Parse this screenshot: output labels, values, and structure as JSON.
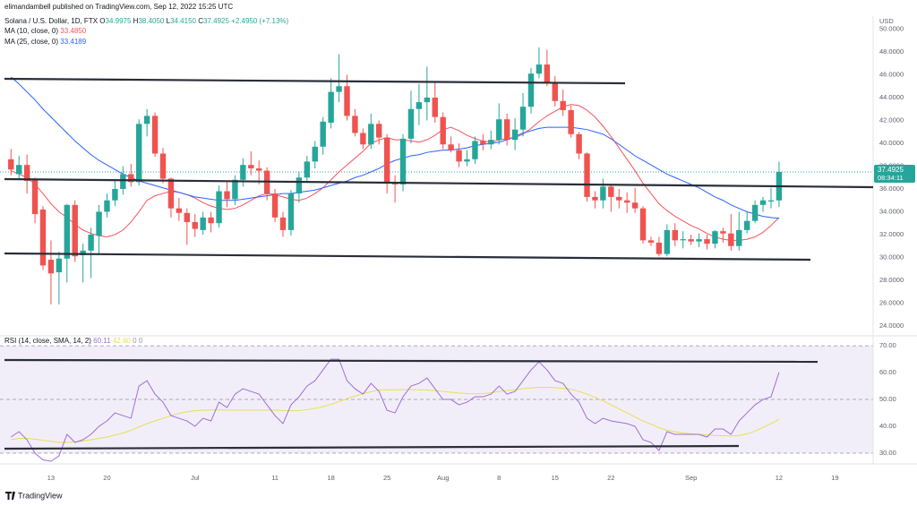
{
  "header": {
    "publisher": "elimandambell published on TradingView.com, Sep 12, 2022 15:25 UTC",
    "brand": "TradingView"
  },
  "chart_data": [
    {
      "type": "candlestick",
      "title": "Solana / U.S. Dollar, 1D, FTX",
      "ohlc_legend": [
        {
          "key": "O",
          "value": "34.9975"
        },
        {
          "key": "H",
          "value": "38.4050"
        },
        {
          "key": "L",
          "value": "34.4150"
        },
        {
          "key": "C",
          "value": "37.4925"
        }
      ],
      "change": "+2.4950 (+7.13%)",
      "currency": "USD",
      "price_label": "37.4925",
      "countdown": "08:34:11",
      "up_color": "#26a69a",
      "down_color": "#ef5350",
      "grid": false,
      "categories": [
        null,
        null,
        null,
        null,
        null,
        "13",
        null,
        null,
        null,
        null,
        null,
        null,
        "20",
        null,
        null,
        null,
        null,
        null,
        null,
        null,
        null,
        null,
        null,
        "Jul",
        null,
        null,
        null,
        null,
        null,
        null,
        null,
        null,
        null,
        "11",
        null,
        null,
        null,
        null,
        null,
        null,
        "18",
        null,
        null,
        null,
        null,
        null,
        null,
        "25",
        null,
        null,
        null,
        null,
        null,
        null,
        "Aug",
        null,
        null,
        null,
        null,
        null,
        null,
        "8",
        null,
        null,
        null,
        null,
        null,
        null,
        "15",
        null,
        null,
        null,
        null,
        null,
        null,
        "22",
        null,
        null,
        null,
        null,
        null,
        null,
        null,
        null,
        null,
        "Sep",
        null,
        null,
        null,
        null,
        null,
        null,
        null,
        null,
        null,
        null,
        "12",
        null,
        null,
        null,
        null,
        null,
        null,
        "19",
        null,
        null,
        null,
        null
      ],
      "open": [
        38.6,
        37.3,
        38.1,
        36.8,
        34.2,
        29.8,
        28.7,
        29.9,
        34.6,
        30.2,
        30.6,
        31.9,
        34.0,
        35.0,
        36.0,
        37.3,
        36.6,
        41.7,
        42.4,
        39.1,
        36.9,
        34.3,
        33.9,
        33.1,
        32.4,
        33.5,
        33.0,
        35.8,
        35.1,
        36.8,
        38.1,
        37.8,
        37.6,
        35.6,
        33.5,
        32.4,
        35.6,
        37.0,
        38.4,
        39.7,
        41.8,
        44.5,
        45.0,
        42.4,
        40.9,
        39.9,
        41.7,
        40.5,
        36.6,
        36.4,
        40.4,
        43.0,
        43.6,
        44.0,
        42.3,
        39.9,
        39.4,
        38.4,
        38.6,
        40.2,
        39.9,
        40.3,
        42.1,
        40.3,
        41.2,
        43.2,
        46.1,
        46.9,
        45.3,
        43.7,
        42.9,
        40.8,
        39.1,
        35.3,
        35.0,
        36.2,
        35.3,
        35.0,
        34.8,
        34.3,
        31.5,
        31.3,
        30.3,
        32.4,
        31.5,
        31.6,
        31.4,
        31.6,
        31.2,
        32.3,
        32.1,
        31.0,
        32.4,
        33.2,
        34.6,
        34.9,
        34.9975,
        null,
        null,
        null,
        null,
        null,
        null,
        null,
        null,
        null,
        null,
        null
      ],
      "high": [
        39.5,
        38.9,
        39.0,
        37.0,
        34.5,
        31.5,
        30.5,
        34.7,
        35.0,
        31.2,
        32.6,
        34.6,
        35.6,
        36.8,
        38.0,
        38.2,
        42.1,
        43.0,
        42.7,
        39.6,
        37.0,
        35.2,
        34.3,
        33.8,
        34.0,
        34.0,
        36.3,
        36.6,
        37.2,
        38.7,
        39.3,
        38.5,
        37.9,
        36.0,
        34.0,
        35.9,
        37.5,
        38.9,
        40.2,
        42.3,
        45.7,
        47.8,
        46.0,
        43.0,
        41.3,
        42.6,
        42.0,
        40.8,
        37.2,
        40.8,
        44.6,
        45.2,
        46.7,
        45.3,
        42.7,
        40.6,
        40.0,
        39.4,
        40.6,
        40.8,
        41.1,
        43.5,
        42.6,
        42.2,
        44.4,
        46.6,
        48.4,
        48.2,
        45.9,
        44.7,
        43.3,
        41.0,
        39.2,
        35.8,
        36.9,
        36.4,
        36.0,
        35.7,
        36.1,
        34.5,
        31.8,
        31.8,
        32.9,
        33.0,
        32.3,
        32.0,
        32.1,
        32.0,
        32.4,
        32.6,
        33.8,
        34.0,
        34.0,
        35.0,
        35.3,
        36.1,
        38.405,
        null,
        null,
        null,
        null,
        null,
        null,
        null,
        null,
        null,
        null,
        null
      ],
      "low": [
        37.2,
        36.9,
        35.6,
        33.0,
        28.9,
        25.9,
        25.9,
        27.8,
        29.6,
        27.8,
        28.2,
        30.3,
        33.5,
        34.5,
        35.5,
        36.2,
        36.3,
        40.6,
        38.8,
        36.5,
        33.5,
        33.2,
        31.1,
        31.8,
        32.0,
        32.2,
        32.6,
        34.4,
        34.6,
        36.2,
        37.2,
        36.4,
        35.0,
        33.1,
        31.8,
        31.9,
        34.8,
        36.6,
        37.8,
        39.0,
        41.3,
        43.6,
        42.0,
        40.6,
        39.5,
        39.5,
        39.9,
        35.6,
        34.8,
        35.8,
        40.0,
        41.6,
        42.0,
        41.8,
        39.5,
        39.2,
        37.9,
        38.0,
        38.2,
        39.4,
        39.5,
        39.9,
        39.8,
        39.4,
        40.6,
        42.6,
        45.7,
        45.0,
        43.2,
        42.4,
        40.5,
        38.6,
        34.9,
        34.3,
        34.3,
        34.0,
        34.3,
        33.9,
        33.9,
        31.2,
        31.0,
        30.1,
        30.1,
        31.0,
        30.8,
        31.1,
        30.9,
        30.7,
        30.8,
        31.3,
        30.6,
        30.6,
        32.1,
        33.0,
        34.0,
        34.3,
        34.415,
        null,
        null,
        null,
        null,
        null,
        null,
        null,
        null,
        null,
        null,
        null
      ],
      "close": [
        37.7,
        38.1,
        36.7,
        33.8,
        29.3,
        28.6,
        29.9,
        34.6,
        30.1,
        30.6,
        32.0,
        34.0,
        35.0,
        36.0,
        37.3,
        36.6,
        41.7,
        42.4,
        39.1,
        36.9,
        34.3,
        33.9,
        33.1,
        32.5,
        33.5,
        33.0,
        35.8,
        35.1,
        36.8,
        38.1,
        37.8,
        37.6,
        35.6,
        33.5,
        32.4,
        35.6,
        37.0,
        38.4,
        39.7,
        41.9,
        44.5,
        45.0,
        42.4,
        40.9,
        39.9,
        41.7,
        40.5,
        36.6,
        36.4,
        40.4,
        43.0,
        43.6,
        44.0,
        42.3,
        39.9,
        39.4,
        38.4,
        38.6,
        40.2,
        39.9,
        40.3,
        42.1,
        40.3,
        41.2,
        43.2,
        46.1,
        46.9,
        45.3,
        43.7,
        42.9,
        40.8,
        39.1,
        35.3,
        35.0,
        36.2,
        35.3,
        35.0,
        34.8,
        34.3,
        31.5,
        31.3,
        30.3,
        32.4,
        31.5,
        31.6,
        31.4,
        31.6,
        31.2,
        32.3,
        32.1,
        31.0,
        32.4,
        33.2,
        34.6,
        35.0,
        35.0,
        37.4925,
        null,
        null,
        null,
        null,
        null,
        null,
        null,
        null,
        null,
        null,
        null
      ],
      "series": [
        {
          "name": "MA (10, close, 0)",
          "legend_value": "33.4850",
          "color": "#f7525f",
          "values": [
            37.6,
            37.3,
            37.0,
            36.4,
            35.6,
            34.7,
            34.0,
            33.5,
            32.9,
            32.4,
            32.1,
            31.9,
            31.8,
            32.0,
            32.4,
            33.1,
            34.0,
            35.0,
            35.4,
            35.6,
            35.8,
            35.7,
            35.5,
            35.2,
            34.8,
            34.5,
            34.3,
            34.2,
            34.3,
            34.6,
            35.0,
            35.4,
            35.6,
            35.5,
            35.3,
            35.1,
            35.0,
            35.2,
            35.6,
            36.1,
            36.8,
            37.5,
            38.1,
            38.7,
            39.3,
            40.0,
            40.3,
            40.5,
            40.3,
            40.3,
            40.2,
            40.1,
            40.3,
            40.7,
            41.2,
            41.4,
            41.1,
            40.7,
            40.4,
            40.2,
            40.1,
            40.3,
            40.4,
            40.5,
            40.8,
            41.3,
            41.9,
            42.4,
            42.8,
            43.2,
            43.4,
            43.3,
            42.9,
            42.3,
            41.5,
            40.6,
            39.6,
            38.6,
            37.6,
            36.5,
            35.6,
            34.7,
            34.1,
            33.6,
            33.2,
            32.8,
            32.5,
            32.1,
            31.8,
            31.6,
            31.5,
            31.5,
            31.6,
            31.8,
            32.2,
            32.8,
            33.485,
            null,
            null,
            null,
            null,
            null,
            null,
            null,
            null,
            null,
            null,
            null
          ]
        },
        {
          "name": "MA (25, close, 0)",
          "legend_value": "33.4189",
          "color": "#2962ff",
          "values": [
            45.8,
            45.2,
            44.5,
            43.8,
            43.0,
            42.3,
            41.6,
            40.9,
            40.2,
            39.6,
            39.0,
            38.5,
            38.1,
            37.7,
            37.3,
            37.0,
            36.7,
            36.5,
            36.3,
            36.1,
            35.9,
            35.7,
            35.5,
            35.3,
            35.2,
            35.1,
            35.0,
            35.0,
            35.0,
            35.1,
            35.2,
            35.3,
            35.4,
            35.5,
            35.6,
            35.6,
            35.7,
            35.8,
            35.9,
            36.1,
            36.3,
            36.5,
            36.7,
            37.0,
            37.2,
            37.5,
            37.8,
            38.2,
            38.5,
            38.7,
            38.9,
            39.0,
            39.2,
            39.3,
            39.4,
            39.4,
            39.5,
            39.6,
            39.8,
            39.9,
            40.0,
            40.1,
            40.3,
            40.6,
            40.9,
            41.1,
            41.3,
            41.4,
            41.4,
            41.4,
            41.4,
            41.3,
            41.2,
            41.0,
            40.8,
            40.4,
            39.9,
            39.4,
            38.9,
            38.5,
            38.1,
            37.7,
            37.3,
            37.0,
            36.7,
            36.4,
            36.1,
            35.7,
            35.3,
            35.0,
            34.6,
            34.3,
            34.0,
            33.8,
            33.6,
            33.5,
            33.4189,
            null,
            null,
            null,
            null,
            null,
            null,
            null,
            null,
            null,
            null,
            null
          ]
        }
      ],
      "ylim": [
        23.37,
        50.98
      ],
      "yticks": [
        {
          "value": 24,
          "label": "24.0000"
        },
        {
          "value": 26,
          "label": "26.0000"
        },
        {
          "value": 28,
          "label": "28.0000"
        },
        {
          "value": 30,
          "label": "30.0000"
        },
        {
          "value": 32,
          "label": "32.0000"
        },
        {
          "value": 34,
          "label": "34.0000"
        },
        {
          "value": 36,
          "label": "36.0000"
        },
        {
          "value": 38,
          "label": "38.0000"
        },
        {
          "value": 40,
          "label": "40.0000"
        },
        {
          "value": 42,
          "label": "42.0000"
        },
        {
          "value": 44,
          "label": "44.0000"
        },
        {
          "value": 46,
          "label": "46.0000"
        },
        {
          "value": 48,
          "label": "48.0000"
        },
        {
          "value": 50,
          "label": "50.0000"
        }
      ]
    },
    {
      "type": "line",
      "title": "RSI (14, close, SMA, 14, 2)",
      "extra_legend": [
        "0",
        "0"
      ],
      "band": [
        30,
        70
      ],
      "band_color": "#7e57c2",
      "midline": 50,
      "series": [
        {
          "name": "RSI",
          "legend_value": "60.11",
          "color": "#9c6fd6",
          "values": [
            36,
            38,
            35,
            30,
            27.5,
            27,
            29,
            37,
            34,
            35,
            37,
            40,
            42,
            45,
            44,
            43,
            55,
            57,
            52,
            49,
            44,
            43,
            42,
            40,
            43,
            42,
            49,
            47,
            52,
            54,
            53,
            52,
            48,
            44,
            41,
            48,
            51,
            55,
            57,
            61,
            65,
            65,
            57,
            54,
            52,
            56,
            53,
            46,
            45,
            51,
            55,
            56,
            58,
            54,
            50,
            50,
            48,
            49,
            51,
            51,
            52,
            55,
            52,
            53,
            57,
            61,
            64,
            61,
            57,
            56,
            52,
            49,
            43,
            41,
            43,
            42,
            41.5,
            41,
            40,
            35,
            34,
            31,
            38,
            37,
            37,
            37,
            37,
            36,
            39,
            39,
            37,
            42,
            45,
            48,
            50,
            51,
            60.11,
            null,
            null,
            null,
            null,
            null,
            null,
            null,
            null,
            null,
            null,
            null
          ]
        },
        {
          "name": "SMA",
          "legend_value": "42.60",
          "color": "#e6e04f",
          "values": [
            35,
            35.5,
            35.5,
            35.2,
            34.8,
            34.4,
            34.0,
            34.0,
            34.2,
            34.5,
            35,
            35.5,
            36,
            36.8,
            37.5,
            38.5,
            39.8,
            41,
            42,
            43,
            44,
            44.8,
            45.4,
            45.8,
            46,
            46.1,
            46.1,
            46,
            46,
            46,
            46,
            46,
            46,
            46,
            45.9,
            45.8,
            45.9,
            46.2,
            46.7,
            47.3,
            48.2,
            49.2,
            50.3,
            51.3,
            52.2,
            52.9,
            53.5,
            53.6,
            53.6,
            53.7,
            53.7,
            53.6,
            53.5,
            53.3,
            53,
            52.7,
            52.4,
            52.2,
            52.1,
            52.2,
            52.5,
            53,
            53.3,
            53.6,
            54,
            54.3,
            54.5,
            54.5,
            54.4,
            54.2,
            53.8,
            53,
            52,
            50.8,
            49.5,
            48,
            46.5,
            45,
            43.5,
            42,
            40.8,
            39.5,
            38.5,
            38,
            37.5,
            37.2,
            37,
            36.8,
            36.6,
            36.5,
            36.4,
            36.6,
            37.2,
            38.2,
            39.6,
            41,
            42.6,
            null,
            null,
            null,
            null,
            null,
            null,
            null,
            null,
            null,
            null,
            null
          ]
        }
      ],
      "ylim": [
        27,
        72.7
      ],
      "yticks": [
        {
          "value": 30,
          "label": "30.00"
        },
        {
          "value": 40,
          "label": "40.00"
        },
        {
          "value": 50,
          "label": "50.00"
        },
        {
          "value": 60,
          "label": "60.00"
        },
        {
          "value": 70,
          "label": "70.00"
        }
      ]
    }
  ]
}
